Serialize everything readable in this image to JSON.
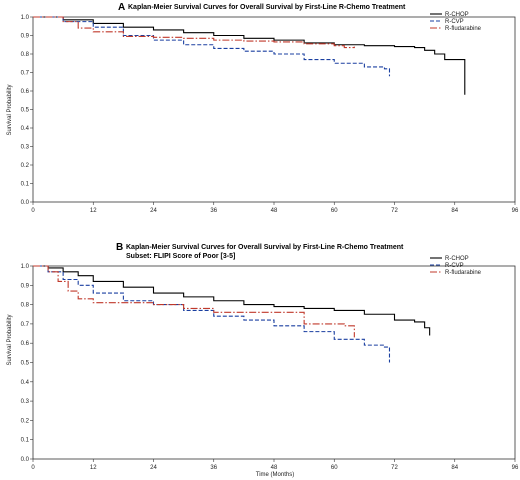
{
  "chart_data": [
    {
      "type": "line",
      "panel_letter": "A",
      "title": "Kaplan-Meier Survival Curves for Overall Survival by First-Line R-Chemo Treatment",
      "subtitle": "",
      "xlabel": "",
      "ylabel": "Survival Probability",
      "xlim": [
        0,
        96
      ],
      "ylim": [
        0,
        1
      ],
      "xticks": [
        "0",
        "12",
        "24",
        "36",
        "48",
        "60",
        "72",
        "84",
        "96"
      ],
      "yticks": [
        "0.0",
        "0.1",
        "0.2",
        "0.3",
        "0.4",
        "0.5",
        "0.6",
        "0.7",
        "0.8",
        "0.9",
        "1.0"
      ],
      "legend_position": "top-right",
      "series": [
        {
          "name": "R-CHOP",
          "color": "#000000",
          "dash": "solid",
          "x": [
            0,
            6,
            12,
            18,
            24,
            30,
            36,
            42,
            48,
            54,
            60,
            66,
            72,
            76,
            78,
            80,
            82,
            84,
            86,
            86
          ],
          "y": [
            1.0,
            0.985,
            0.965,
            0.945,
            0.93,
            0.915,
            0.9,
            0.885,
            0.875,
            0.86,
            0.85,
            0.845,
            0.84,
            0.835,
            0.82,
            0.8,
            0.77,
            0.77,
            0.77,
            0.58
          ]
        },
        {
          "name": "R-CVP",
          "color": "#1a3fa0",
          "dash": "dashed",
          "x": [
            0,
            6,
            12,
            18,
            24,
            30,
            36,
            42,
            48,
            54,
            60,
            66,
            70,
            71
          ],
          "y": [
            1.0,
            0.975,
            0.945,
            0.9,
            0.875,
            0.85,
            0.83,
            0.815,
            0.8,
            0.77,
            0.75,
            0.73,
            0.72,
            0.68
          ]
        },
        {
          "name": "R-fludarabine",
          "color": "#c0392b",
          "dash": "dashdot",
          "x": [
            0,
            6,
            9,
            12,
            18,
            24,
            30,
            36,
            42,
            48,
            54,
            60,
            62,
            64
          ],
          "y": [
            1.0,
            0.975,
            0.94,
            0.92,
            0.895,
            0.89,
            0.885,
            0.875,
            0.87,
            0.865,
            0.855,
            0.845,
            0.835,
            0.84
          ]
        }
      ]
    },
    {
      "type": "line",
      "panel_letter": "B",
      "title": "Kaplan-Meier Survival Curves for Overall Survival by First-Line R-Chemo Treatment",
      "subtitle": "Subset: FLIPI Score of Poor [3-5]",
      "xlabel": "Time (Months)",
      "ylabel": "Survival Probability",
      "xlim": [
        0,
        96
      ],
      "ylim": [
        0,
        1
      ],
      "xticks": [
        "0",
        "12",
        "24",
        "36",
        "48",
        "60",
        "72",
        "84",
        "96"
      ],
      "yticks": [
        "0.0",
        "0.1",
        "0.2",
        "0.3",
        "0.4",
        "0.5",
        "0.6",
        "0.7",
        "0.8",
        "0.9",
        "1.0"
      ],
      "legend_position": "top-right",
      "series": [
        {
          "name": "R-CHOP",
          "color": "#000000",
          "dash": "solid",
          "x": [
            0,
            3,
            6,
            9,
            12,
            18,
            24,
            30,
            36,
            42,
            48,
            54,
            60,
            66,
            72,
            76,
            78,
            79,
            79
          ],
          "y": [
            1.0,
            0.99,
            0.97,
            0.95,
            0.92,
            0.89,
            0.86,
            0.84,
            0.82,
            0.8,
            0.79,
            0.78,
            0.77,
            0.75,
            0.72,
            0.71,
            0.68,
            0.68,
            0.64
          ]
        },
        {
          "name": "R-CVP",
          "color": "#1a3fa0",
          "dash": "dashed",
          "x": [
            0,
            3,
            6,
            9,
            12,
            18,
            24,
            30,
            36,
            42,
            48,
            54,
            60,
            66,
            70,
            71
          ],
          "y": [
            1.0,
            0.97,
            0.93,
            0.9,
            0.86,
            0.82,
            0.8,
            0.77,
            0.74,
            0.72,
            0.69,
            0.66,
            0.62,
            0.59,
            0.58,
            0.5
          ]
        },
        {
          "name": "R-fludarabine",
          "color": "#c0392b",
          "dash": "dashdot",
          "x": [
            0,
            3,
            5,
            7,
            9,
            12,
            18,
            24,
            30,
            36,
            42,
            48,
            54,
            58,
            62,
            64
          ],
          "y": [
            1.0,
            0.97,
            0.92,
            0.87,
            0.83,
            0.81,
            0.81,
            0.8,
            0.78,
            0.76,
            0.76,
            0.76,
            0.7,
            0.7,
            0.69,
            0.63
          ]
        }
      ]
    }
  ]
}
